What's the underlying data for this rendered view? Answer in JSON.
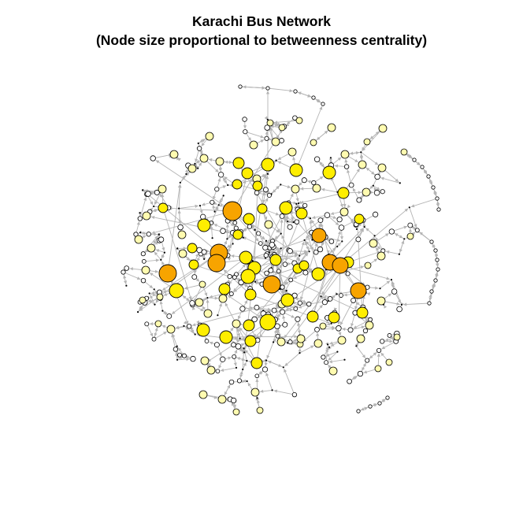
{
  "title": {
    "line1": "Karachi Bus Network",
    "line2": "(Node size proportional to betweenness centrality)"
  },
  "colors": {
    "background": "#ffffff",
    "edge": "#b4b4b4",
    "node_outline": "#000000",
    "node_low": "#ffffff",
    "node_mid": "#fffbb0",
    "node_high": "#ffee00",
    "node_top": "#f7a400"
  },
  "legend": null
}
